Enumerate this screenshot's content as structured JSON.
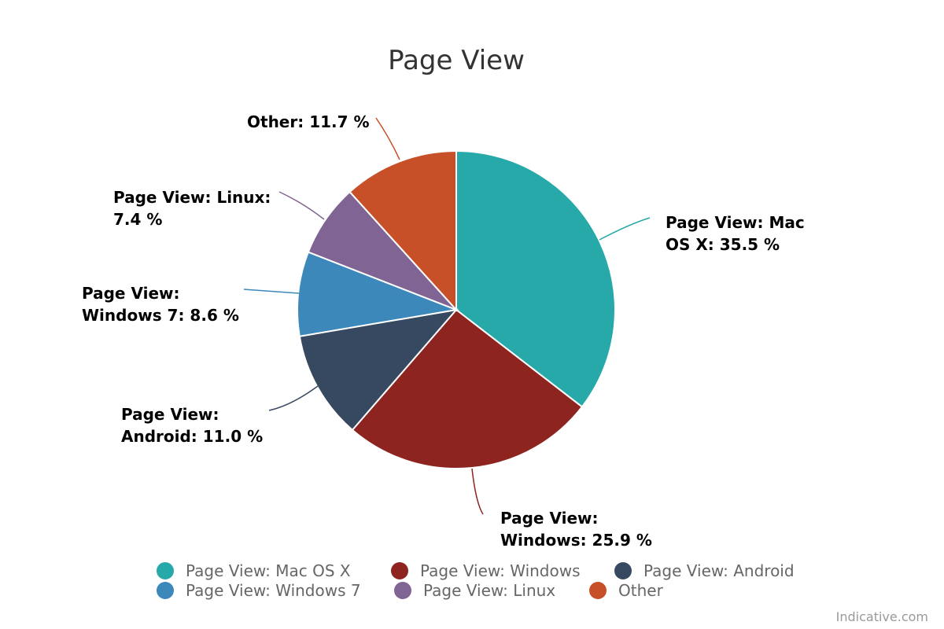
{
  "chart_data": {
    "type": "pie",
    "title": "Page View",
    "slices": [
      {
        "name": "Page View: Mac OS X",
        "value": 35.5,
        "label_lines": [
          "Page View: Mac",
          "OS X: 35.5 %"
        ],
        "color": "#26a9a8"
      },
      {
        "name": "Page View: Windows",
        "value": 25.9,
        "label_lines": [
          "Page View:",
          "Windows: 25.9 %"
        ],
        "color": "#8e2420"
      },
      {
        "name": "Page View: Android",
        "value": 11.0,
        "label_lines": [
          "Page View:",
          "Android: 11.0 %"
        ],
        "color": "#374960"
      },
      {
        "name": "Page View: Windows 7",
        "value": 8.6,
        "label_lines": [
          "Page View:",
          "Windows 7: 8.6 %"
        ],
        "color": "#3d88bb"
      },
      {
        "name": "Page View: Linux",
        "value": 7.4,
        "label_lines": [
          "Page View: Linux:",
          "7.4 %"
        ],
        "color": "#806493"
      },
      {
        "name": "Other",
        "value": 11.7,
        "label_lines": [
          "Other: 11.7 %"
        ],
        "color": "#c75029"
      }
    ],
    "legend": {
      "placement": "bottom",
      "items": [
        "Page View: Mac OS X",
        "Page View: Windows",
        "Page View: Android",
        "Page View: Windows 7",
        "Page View: Linux",
        "Other"
      ]
    }
  },
  "credit": "Indicative.com"
}
